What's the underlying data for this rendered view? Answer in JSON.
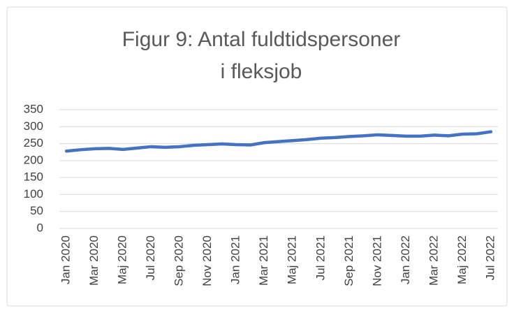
{
  "chart_data": {
    "type": "line",
    "title": [
      "Figur 9: Antal fuldtidspersoner",
      "i fleksjob"
    ],
    "categories": [
      "Jan 2020",
      null,
      "Mar 2020",
      null,
      "Maj 2020",
      null,
      "Jul 2020",
      null,
      "Sep 2020",
      null,
      "Nov 2020",
      null,
      "Jan 2021",
      null,
      "Mar 2021",
      null,
      "Maj 2021",
      null,
      "Jul 2021",
      null,
      "Sep 2021",
      null,
      "Nov 2021",
      null,
      "Jan 2022",
      null,
      "Mar 2022",
      null,
      "Maj 2022",
      null,
      "Jul 2022"
    ],
    "values": [
      228,
      232,
      235,
      236,
      233,
      237,
      241,
      239,
      241,
      245,
      247,
      249,
      247,
      246,
      253,
      256,
      259,
      262,
      266,
      268,
      271,
      273,
      276,
      274,
      272,
      272,
      275,
      273,
      278,
      279,
      285
    ],
    "color": "#4472c4",
    "ylim": [
      0,
      350
    ],
    "yticks": [
      0,
      50,
      100,
      150,
      200,
      250,
      300,
      350
    ],
    "grid": true
  }
}
